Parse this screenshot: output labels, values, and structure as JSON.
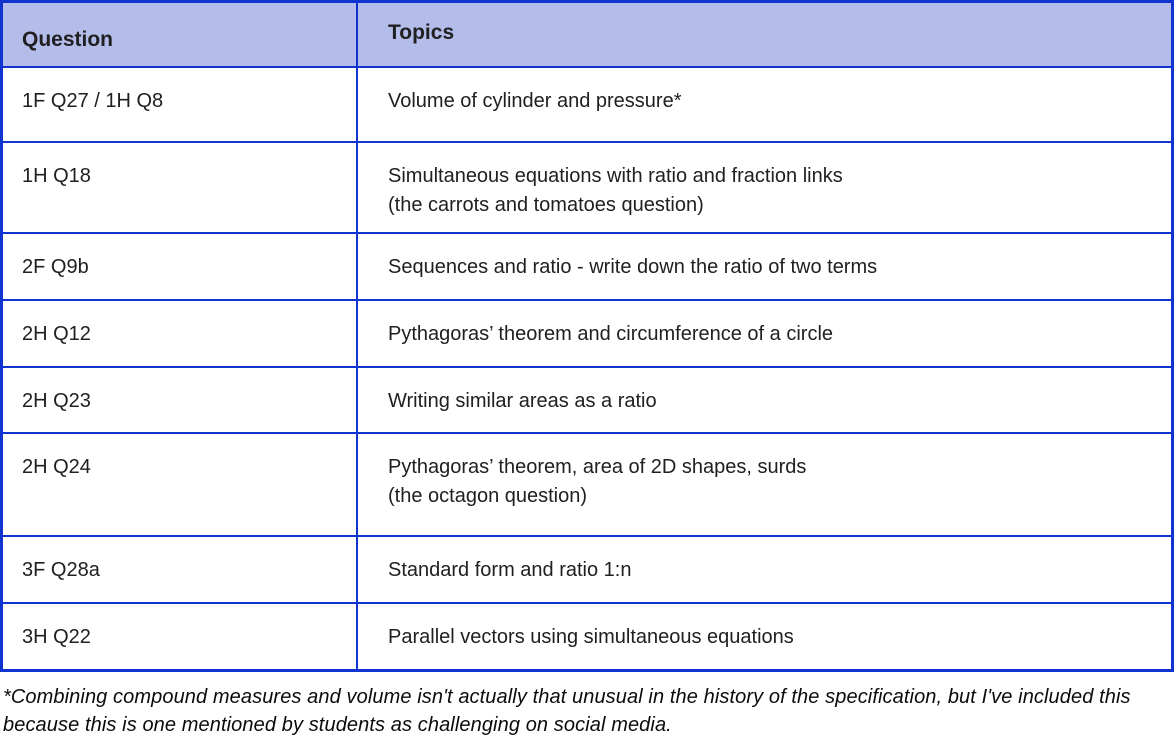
{
  "table": {
    "headers": {
      "question": "Question",
      "topics": "Topics"
    },
    "rows": [
      {
        "question": "1F Q27 / 1H Q8",
        "topics": [
          "Volume of cylinder and pressure*"
        ]
      },
      {
        "question": "1H Q18",
        "topics": [
          "Simultaneous equations with ratio and fraction links",
          "(the carrots and tomatoes question)"
        ]
      },
      {
        "question": "2F Q9b",
        "topics": [
          "Sequences and ratio - write down the ratio of two terms"
        ]
      },
      {
        "question": "2H Q12",
        "topics": [
          "Pythagoras’ theorem and circumference of a circle"
        ]
      },
      {
        "question": "2H Q23",
        "topics": [
          "Writing similar areas as a ratio"
        ]
      },
      {
        "question": "2H Q24",
        "topics": [
          "Pythagoras’ theorem, area of 2D shapes, surds",
          "(the octagon question)"
        ]
      },
      {
        "question": "3F Q28a",
        "topics": [
          "Standard form and ratio 1:n"
        ]
      },
      {
        "question": "3H Q22",
        "topics": [
          "Parallel vectors using simultaneous equations"
        ]
      }
    ]
  },
  "footnote": {
    "text": "*Combining compound measures and volume isn't actually that unusual in the history of the specification, but I've included this because this is one mentioned by students as challenging on social media."
  },
  "colors": {
    "border": "#1133cf",
    "header_bg": "#b4bcea",
    "text": "#202022",
    "footnote_text": "#0b0b0c",
    "page_bg": "#ffffff"
  }
}
